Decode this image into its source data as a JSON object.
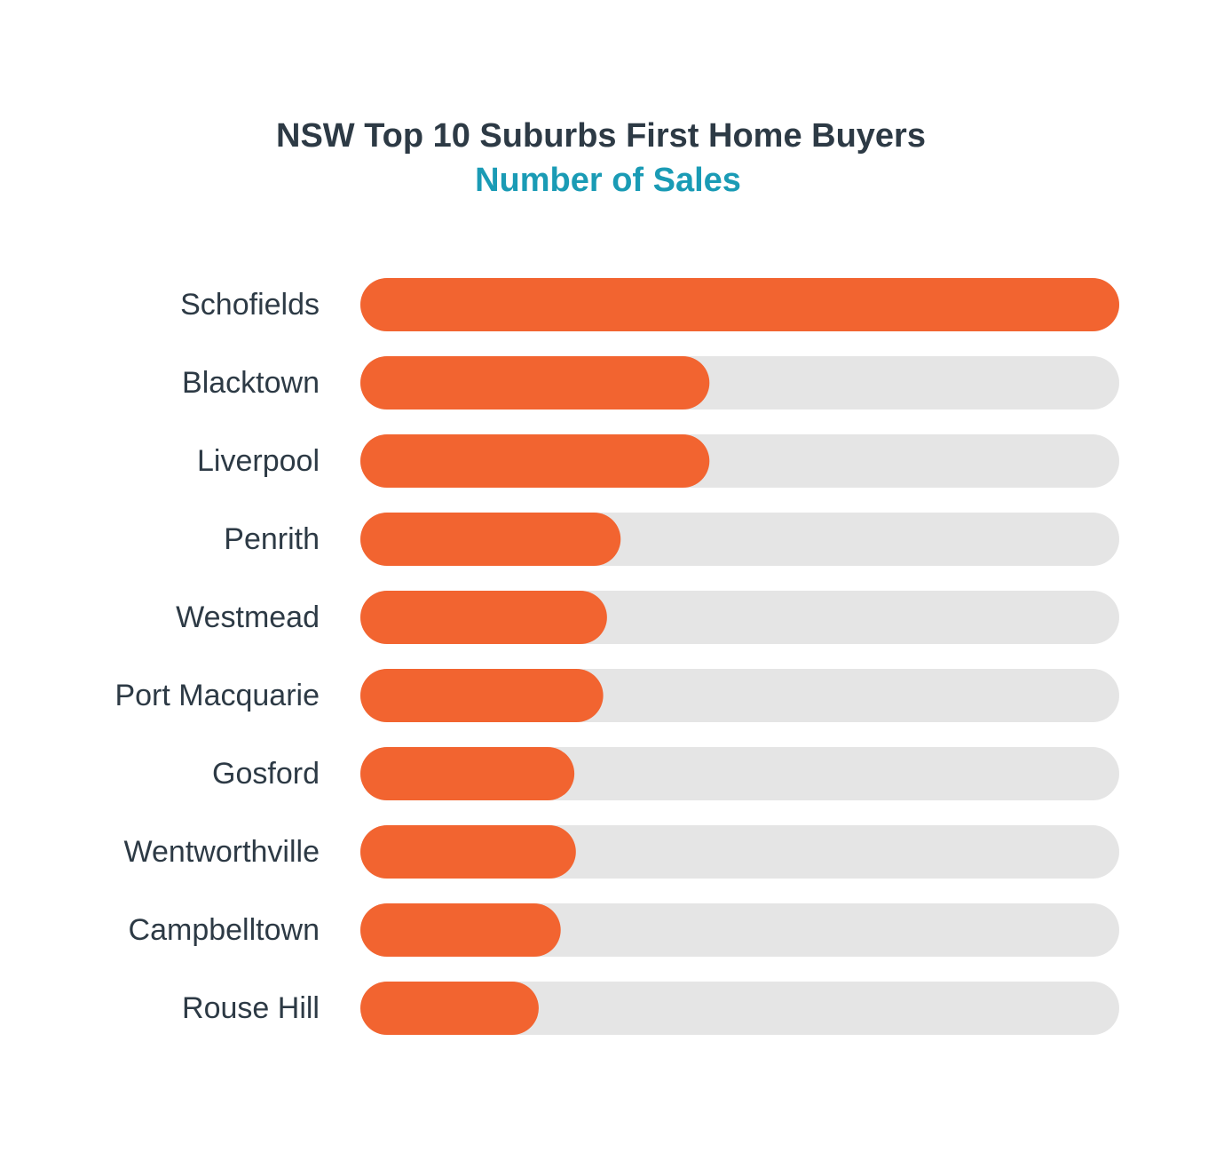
{
  "chart_data": {
    "type": "bar",
    "orientation": "horizontal",
    "title": "NSW Top 10 Suburbs First Home Buyers",
    "subtitle": "Number of Sales",
    "categories": [
      "Schofields",
      "Blacktown",
      "Liverpool",
      "Penrith",
      "Westmead",
      "Port Macquarie",
      "Gosford",
      "Wentworthville",
      "Campbelltown",
      "Rouse Hill"
    ],
    "values": [
      100,
      46,
      46,
      34.3,
      32.5,
      32,
      28.2,
      28.4,
      26.4,
      23.5
    ],
    "color": "#f26430",
    "xlim": [
      0,
      100
    ]
  }
}
